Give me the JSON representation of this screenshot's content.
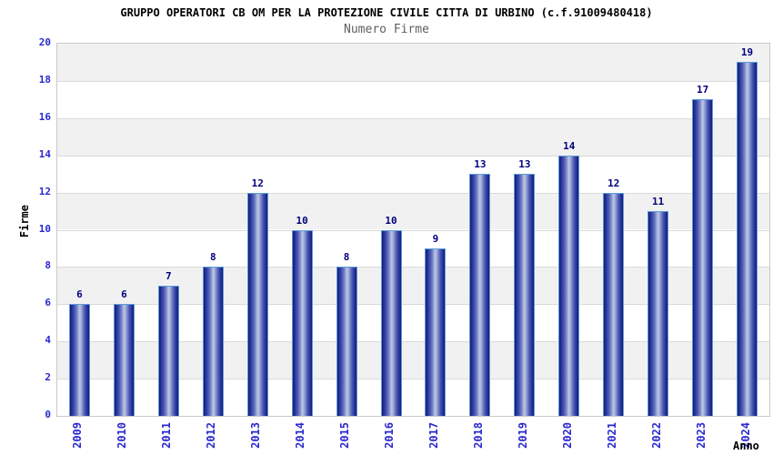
{
  "header": {
    "title": "GRUPPO OPERATORI CB OM PER LA PROTEZIONE CIVILE CITTA DI URBINO (c.f.91009480418)",
    "subtitle": "Numero Firme"
  },
  "chart_data": {
    "type": "bar",
    "title": "GRUPPO OPERATORI CB OM PER LA PROTEZIONE CIVILE CITTA DI URBINO (c.f.91009480418)",
    "subtitle": "Numero Firme",
    "xlabel": "Anno",
    "ylabel": "Firme",
    "categories": [
      "2009",
      "2010",
      "2011",
      "2012",
      "2013",
      "2014",
      "2015",
      "2016",
      "2017",
      "2018",
      "2019",
      "2020",
      "2021",
      "2022",
      "2023",
      "2024"
    ],
    "values": [
      6,
      6,
      7,
      8,
      12,
      10,
      8,
      10,
      9,
      13,
      13,
      14,
      12,
      11,
      17,
      19
    ],
    "ylim": [
      0,
      20
    ],
    "ytick_step": 2,
    "grid": true,
    "legend": "none",
    "bar_labels_shown": true,
    "colors": {
      "bar_edge": "#161c70",
      "bar_mid": "#3f4dac",
      "bar_light": "#8famitted",
      "bar_highlight": "#b7c1e4",
      "bar_border": "#5b9bd8",
      "value_label": "#00007d",
      "tick_label": "#2929cf",
      "band_gray": "#f1f1f1",
      "band_white": "#ffffff",
      "gridline": "#dadada",
      "plot_border": "#c9c9c9",
      "title_color": "#000000",
      "subtitle_color": "#5f5f5f"
    }
  }
}
